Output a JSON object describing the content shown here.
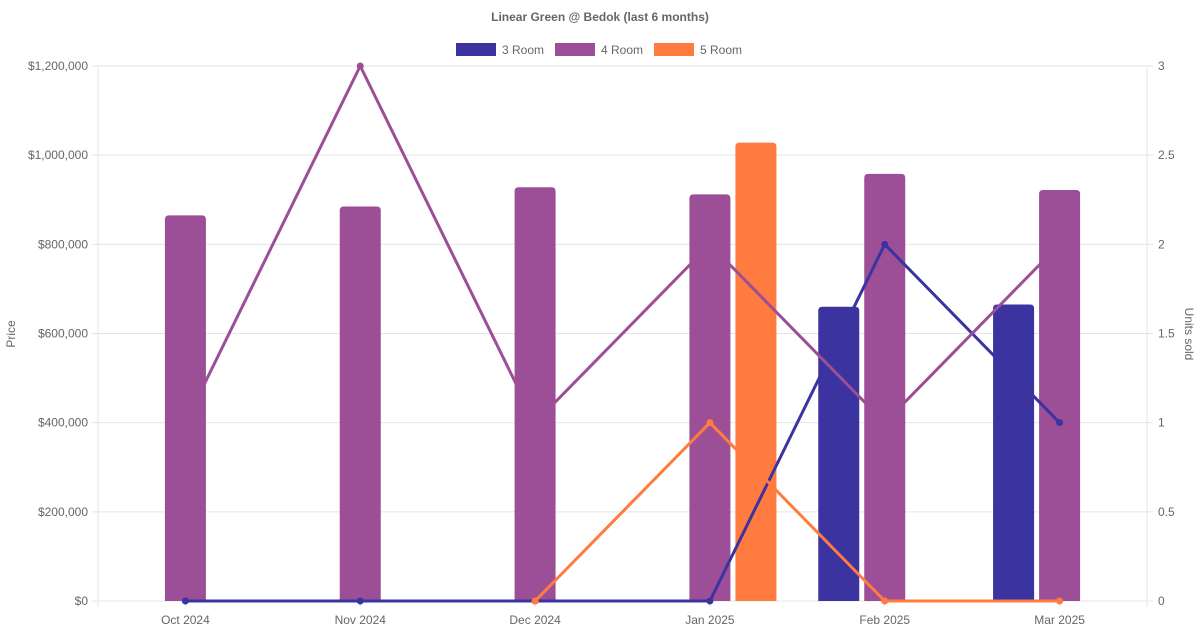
{
  "chart_data": {
    "type": "bar",
    "title": "Linear Green @ Bedok (last 6 months)",
    "categories": [
      "Oct 2024",
      "Nov 2024",
      "Dec 2024",
      "Jan 2025",
      "Feb 2025",
      "Mar 2025"
    ],
    "y_left": {
      "label": "Price",
      "range": [
        0,
        1200000
      ],
      "ticks": [
        0,
        200000,
        400000,
        600000,
        800000,
        1000000,
        1200000
      ],
      "tick_labels": [
        "$0",
        "$200,000",
        "$400,000",
        "$600,000",
        "$800,000",
        "$1,000,000",
        "$1,200,000"
      ]
    },
    "y_right": {
      "label": "Units sold",
      "range": [
        0,
        3
      ],
      "ticks": [
        0,
        0.5,
        1,
        1.5,
        2,
        2.5,
        3
      ],
      "tick_labels": [
        "0",
        "0.5",
        "1",
        "1.5",
        "2",
        "2.5",
        "3"
      ]
    },
    "grid": true,
    "legend_position": "top",
    "series": [
      {
        "name": "3 Room",
        "color": "#3a33a0",
        "price": [
          null,
          null,
          null,
          null,
          660000,
          665000
        ],
        "units": [
          0,
          0,
          0,
          0,
          2,
          1
        ]
      },
      {
        "name": "4 Room",
        "color": "#9c4f96",
        "price": [
          865000,
          885000,
          928000,
          912000,
          958000,
          922000
        ],
        "units": [
          1,
          3,
          1,
          2,
          1,
          2
        ]
      },
      {
        "name": "5 Room",
        "color": "#ff7b3f",
        "price": [
          null,
          null,
          null,
          1028000,
          null,
          null
        ],
        "units": [
          null,
          null,
          0,
          1,
          0,
          0
        ]
      }
    ]
  }
}
